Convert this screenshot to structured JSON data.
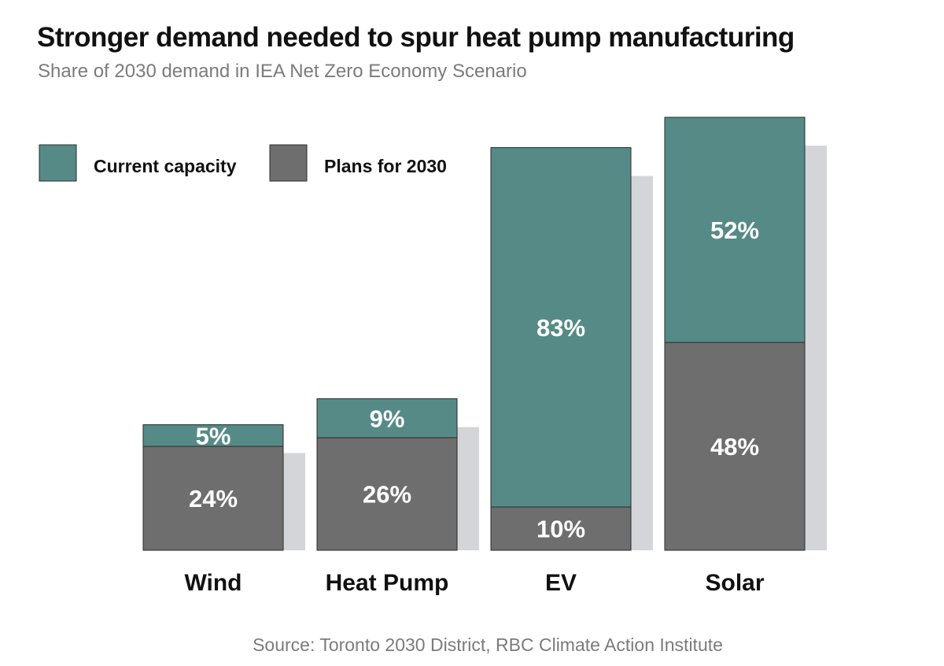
{
  "chart_data": {
    "type": "bar",
    "stacked": true,
    "title": "Stronger demand needed to spur heat pump manufacturing",
    "subtitle": "Share of 2030 demand in IEA Net Zero Economy Scenario",
    "categories": [
      "Wind",
      "Heat Pump",
      "EV",
      "Solar"
    ],
    "series": [
      {
        "name": "Plans for 2030",
        "color": "#6e6e6e",
        "values": [
          24,
          26,
          10,
          48
        ],
        "labels": [
          "24%",
          "26%",
          "10%",
          "48%"
        ]
      },
      {
        "name": "Current capacity",
        "color": "#568a86",
        "values": [
          5,
          9,
          83,
          52
        ],
        "labels": [
          "5%",
          "9%",
          "83%",
          "52%"
        ]
      }
    ],
    "shadow_color": "#d3d5d8",
    "ylim": [
      0,
      100
    ],
    "grid": false,
    "legend_position": "top-left",
    "source": "Source: Toronto 2030 District, RBC Climate Action Institute"
  }
}
